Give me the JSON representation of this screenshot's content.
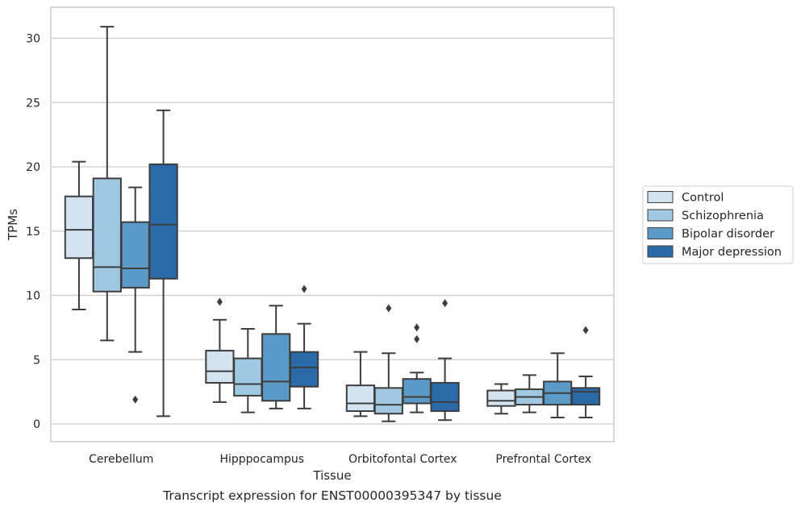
{
  "chart_data": {
    "type": "box",
    "xlabel": "Tissue",
    "ylabel": "TPMs",
    "caption": "Transcript expression for ENST00000395347 by tissue",
    "ylim": [
      -1.3,
      32.3
    ],
    "yticks": [
      0,
      5,
      10,
      15,
      20,
      25,
      30
    ],
    "grid": "horizontal",
    "legend_position": "right",
    "categories": [
      "Cerebellum",
      "Hipppocampus",
      "Orbitofontal Cortex",
      "Prefrontal Cortex"
    ],
    "series": [
      {
        "name": "Control",
        "color": "#d4e3f2",
        "boxes": [
          {
            "whisker_low": 8.9,
            "q1": 12.9,
            "median": 15.1,
            "q3": 17.7,
            "whisker_high": 20.4,
            "outliers": []
          },
          {
            "whisker_low": 1.7,
            "q1": 3.2,
            "median": 4.1,
            "q3": 5.7,
            "whisker_high": 8.1,
            "outliers": [
              9.5
            ]
          },
          {
            "whisker_low": 0.6,
            "q1": 1.0,
            "median": 1.6,
            "q3": 3.0,
            "whisker_high": 5.6,
            "outliers": []
          },
          {
            "whisker_low": 0.8,
            "q1": 1.4,
            "median": 1.8,
            "q3": 2.6,
            "whisker_high": 3.1,
            "outliers": []
          }
        ]
      },
      {
        "name": "Schizophrenia",
        "color": "#a0c8e0",
        "boxes": [
          {
            "whisker_low": 6.5,
            "q1": 10.3,
            "median": 12.2,
            "q3": 19.1,
            "whisker_high": 30.9,
            "outliers": []
          },
          {
            "whisker_low": 0.9,
            "q1": 2.2,
            "median": 3.1,
            "q3": 5.1,
            "whisker_high": 7.4,
            "outliers": []
          },
          {
            "whisker_low": 0.2,
            "q1": 0.8,
            "median": 1.5,
            "q3": 2.8,
            "whisker_high": 5.5,
            "outliers": [
              9.0
            ]
          },
          {
            "whisker_low": 0.9,
            "q1": 1.5,
            "median": 2.1,
            "q3": 2.7,
            "whisker_high": 3.8,
            "outliers": []
          }
        ]
      },
      {
        "name": "Bipolar disorder",
        "color": "#5b9ac7",
        "boxes": [
          {
            "whisker_low": 5.6,
            "q1": 10.6,
            "median": 12.1,
            "q3": 15.7,
            "whisker_high": 18.4,
            "outliers": [
              1.9
            ]
          },
          {
            "whisker_low": 1.2,
            "q1": 1.8,
            "median": 3.3,
            "q3": 7.0,
            "whisker_high": 9.2,
            "outliers": []
          },
          {
            "whisker_low": 0.9,
            "q1": 1.6,
            "median": 2.1,
            "q3": 3.5,
            "whisker_high": 4.0,
            "outliers": [
              7.5,
              6.6
            ]
          },
          {
            "whisker_low": 0.5,
            "q1": 1.5,
            "median": 2.4,
            "q3": 3.3,
            "whisker_high": 5.5,
            "outliers": []
          }
        ]
      },
      {
        "name": "Major depression",
        "color": "#2b6aa8",
        "boxes": [
          {
            "whisker_low": 0.6,
            "q1": 11.3,
            "median": 15.5,
            "q3": 20.2,
            "whisker_high": 24.4,
            "outliers": []
          },
          {
            "whisker_low": 1.2,
            "q1": 2.9,
            "median": 4.4,
            "q3": 5.6,
            "whisker_high": 7.8,
            "outliers": [
              10.5
            ]
          },
          {
            "whisker_low": 0.3,
            "q1": 1.0,
            "median": 1.7,
            "q3": 3.2,
            "whisker_high": 5.1,
            "outliers": [
              9.4
            ]
          },
          {
            "whisker_low": 0.5,
            "q1": 1.5,
            "median": 2.5,
            "q3": 2.8,
            "whisker_high": 3.7,
            "outliers": [
              7.3
            ]
          }
        ]
      }
    ]
  }
}
